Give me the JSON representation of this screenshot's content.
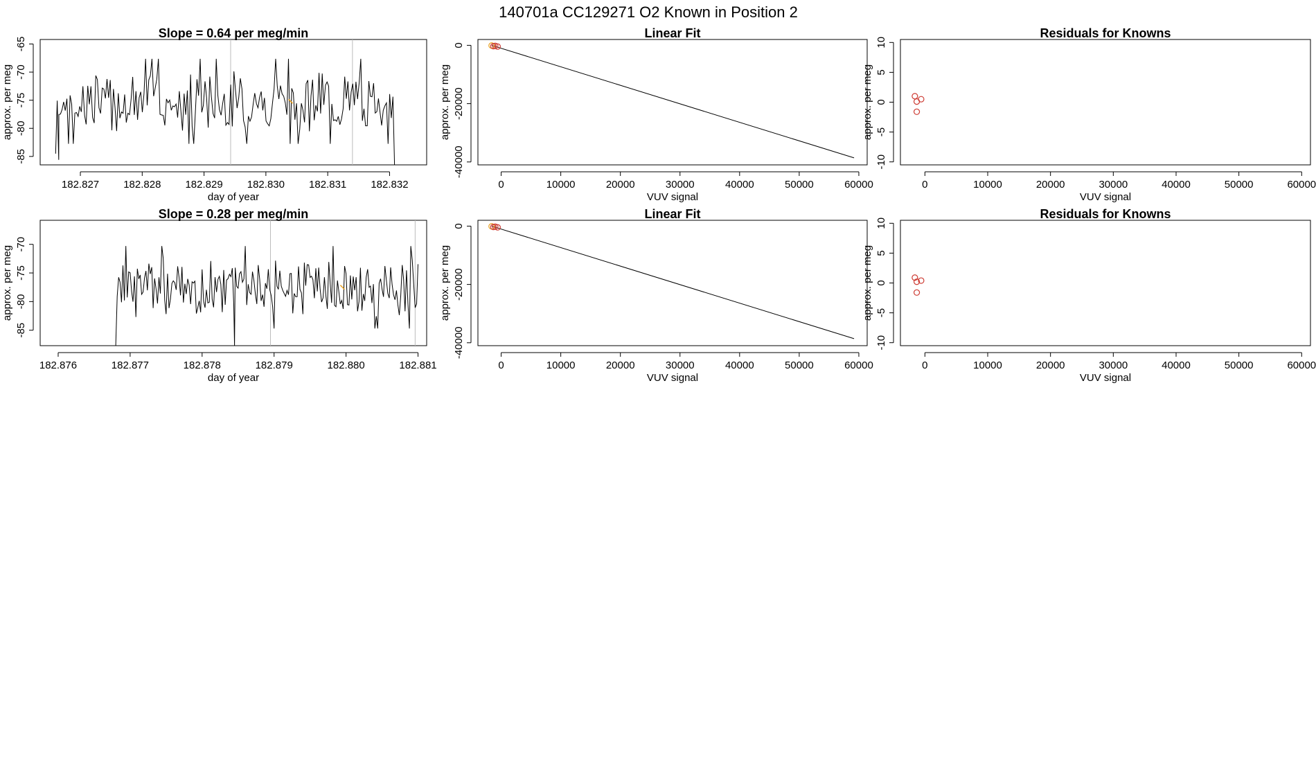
{
  "figure": {
    "title": "140701a     CC129271   O2 Known in Position  2"
  },
  "colors": {
    "trace": "#000000",
    "marker": "#cd3a32",
    "highlight": "#e8a020",
    "divider": "#bbbbbb"
  },
  "chart_data": [
    {
      "type": "line",
      "title": "Slope =  0.64  per meg/min",
      "xlabel": "day of year",
      "ylabel": "approx. per meg",
      "xlim": [
        182.82635,
        182.8326
      ],
      "ylim": [
        -86.5,
        -64.2
      ],
      "xticks": [
        182.827,
        182.828,
        182.829,
        182.83,
        182.831,
        182.832
      ],
      "xtick_labels": [
        "182.827",
        "182.828",
        "182.829",
        "182.830",
        "182.831",
        "182.832"
      ],
      "yticks": [
        -85,
        -80,
        -75,
        -70,
        -65
      ],
      "ytick_labels": [
        "-85",
        "-80",
        "-75",
        "-70",
        "-65"
      ],
      "x_start": 182.8266,
      "x_end": 182.83208,
      "dividers": [
        182.82943,
        182.8314
      ],
      "highlight_x": 182.8304,
      "seed": 7,
      "base": -75.2,
      "spread": 4.2,
      "drops": [
        {
          "x": 182.8266,
          "y": -84.5
        },
        {
          "x": 182.82665,
          "y": -85.6
        },
        {
          "x": 182.83208,
          "y": -86.5
        }
      ]
    },
    {
      "type": "scatter",
      "title": "Linear Fit",
      "xlabel": "VUV signal",
      "ylabel": "approx. per meg",
      "xlim": [
        -3900,
        61400
      ],
      "ylim": [
        -41000,
        2000
      ],
      "xticks": [
        0,
        10000,
        20000,
        30000,
        40000,
        50000,
        60000
      ],
      "xtick_labels": [
        "0",
        "10000",
        "20000",
        "30000",
        "40000",
        "50000",
        "60000"
      ],
      "yticks": [
        -40000,
        -20000,
        0
      ],
      "ytick_labels": [
        "-40000",
        "-20000",
        "0"
      ],
      "line": [
        [
          -1600,
          0
        ],
        [
          59200,
          -38600
        ]
      ],
      "points": [
        [
          -1600,
          -80
        ],
        [
          -1300,
          -300
        ],
        [
          -1000,
          -180
        ],
        [
          -600,
          -420
        ]
      ]
    },
    {
      "type": "scatter",
      "title": "Residuals for Knowns",
      "xlabel": "VUV signal",
      "ylabel": "approx. per meg",
      "xlim": [
        -3900,
        61400
      ],
      "ylim": [
        -10.5,
        10.5
      ],
      "xticks": [
        0,
        10000,
        20000,
        30000,
        40000,
        50000,
        60000
      ],
      "xtick_labels": [
        "0",
        "10000",
        "20000",
        "30000",
        "40000",
        "50000",
        "60000"
      ],
      "yticks": [
        -10,
        -5,
        0,
        5,
        10
      ],
      "ytick_labels": [
        "-10",
        "-5",
        "0",
        "5",
        "10"
      ],
      "points": [
        [
          -1600,
          1.0
        ],
        [
          -1300,
          0.1
        ],
        [
          -600,
          0.5
        ],
        [
          -1300,
          -1.6
        ]
      ]
    },
    {
      "type": "line",
      "title": "Slope =  0.28  per meg/min",
      "xlabel": "day of year",
      "ylabel": "approx. per meg",
      "xlim": [
        182.87575,
        182.88112
      ],
      "ylim": [
        -87.7,
        -65.8
      ],
      "xticks": [
        182.876,
        182.877,
        182.878,
        182.879,
        182.88,
        182.881
      ],
      "xtick_labels": [
        "182.876",
        "182.877",
        "182.878",
        "182.879",
        "182.880",
        "182.881"
      ],
      "yticks": [
        -85,
        -80,
        -75,
        -70
      ],
      "ytick_labels": [
        "-85",
        "-80",
        "-75",
        "-70"
      ],
      "x_start": 182.8768,
      "x_end": 182.88102,
      "dividers": [
        182.87895,
        182.88096
      ],
      "highlight_x": 182.87995,
      "seed": 23,
      "base": -77.5,
      "spread": 4.0,
      "drops": [
        {
          "x": 182.8768,
          "y": -87.7
        },
        {
          "x": 182.87845,
          "y": -87.7
        }
      ]
    },
    {
      "type": "scatter",
      "title": "Linear Fit",
      "xlabel": "VUV signal",
      "ylabel": "approx. per meg",
      "xlim": [
        -3900,
        61400
      ],
      "ylim": [
        -41000,
        2000
      ],
      "xticks": [
        0,
        10000,
        20000,
        30000,
        40000,
        50000,
        60000
      ],
      "xtick_labels": [
        "0",
        "10000",
        "20000",
        "30000",
        "40000",
        "50000",
        "60000"
      ],
      "yticks": [
        -40000,
        -20000,
        0
      ],
      "ytick_labels": [
        "-40000",
        "-20000",
        "0"
      ],
      "line": [
        [
          -1600,
          0
        ],
        [
          59200,
          -38600
        ]
      ],
      "points": [
        [
          -1600,
          -80
        ],
        [
          -1300,
          -300
        ],
        [
          -1000,
          -180
        ],
        [
          -600,
          -420
        ]
      ]
    },
    {
      "type": "scatter",
      "title": "Residuals for Knowns",
      "xlabel": "VUV signal",
      "ylabel": "approx. per meg",
      "xlim": [
        -3900,
        61400
      ],
      "ylim": [
        -10.5,
        10.5
      ],
      "xticks": [
        0,
        10000,
        20000,
        30000,
        40000,
        50000,
        60000
      ],
      "xtick_labels": [
        "0",
        "10000",
        "20000",
        "30000",
        "40000",
        "50000",
        "60000"
      ],
      "yticks": [
        -10,
        -5,
        0,
        5,
        10
      ],
      "ytick_labels": [
        "-10",
        "-5",
        "0",
        "5",
        "10"
      ],
      "points": [
        [
          -1600,
          0.9
        ],
        [
          -1300,
          0.2
        ],
        [
          -600,
          0.4
        ],
        [
          -1300,
          -1.6
        ]
      ]
    }
  ]
}
